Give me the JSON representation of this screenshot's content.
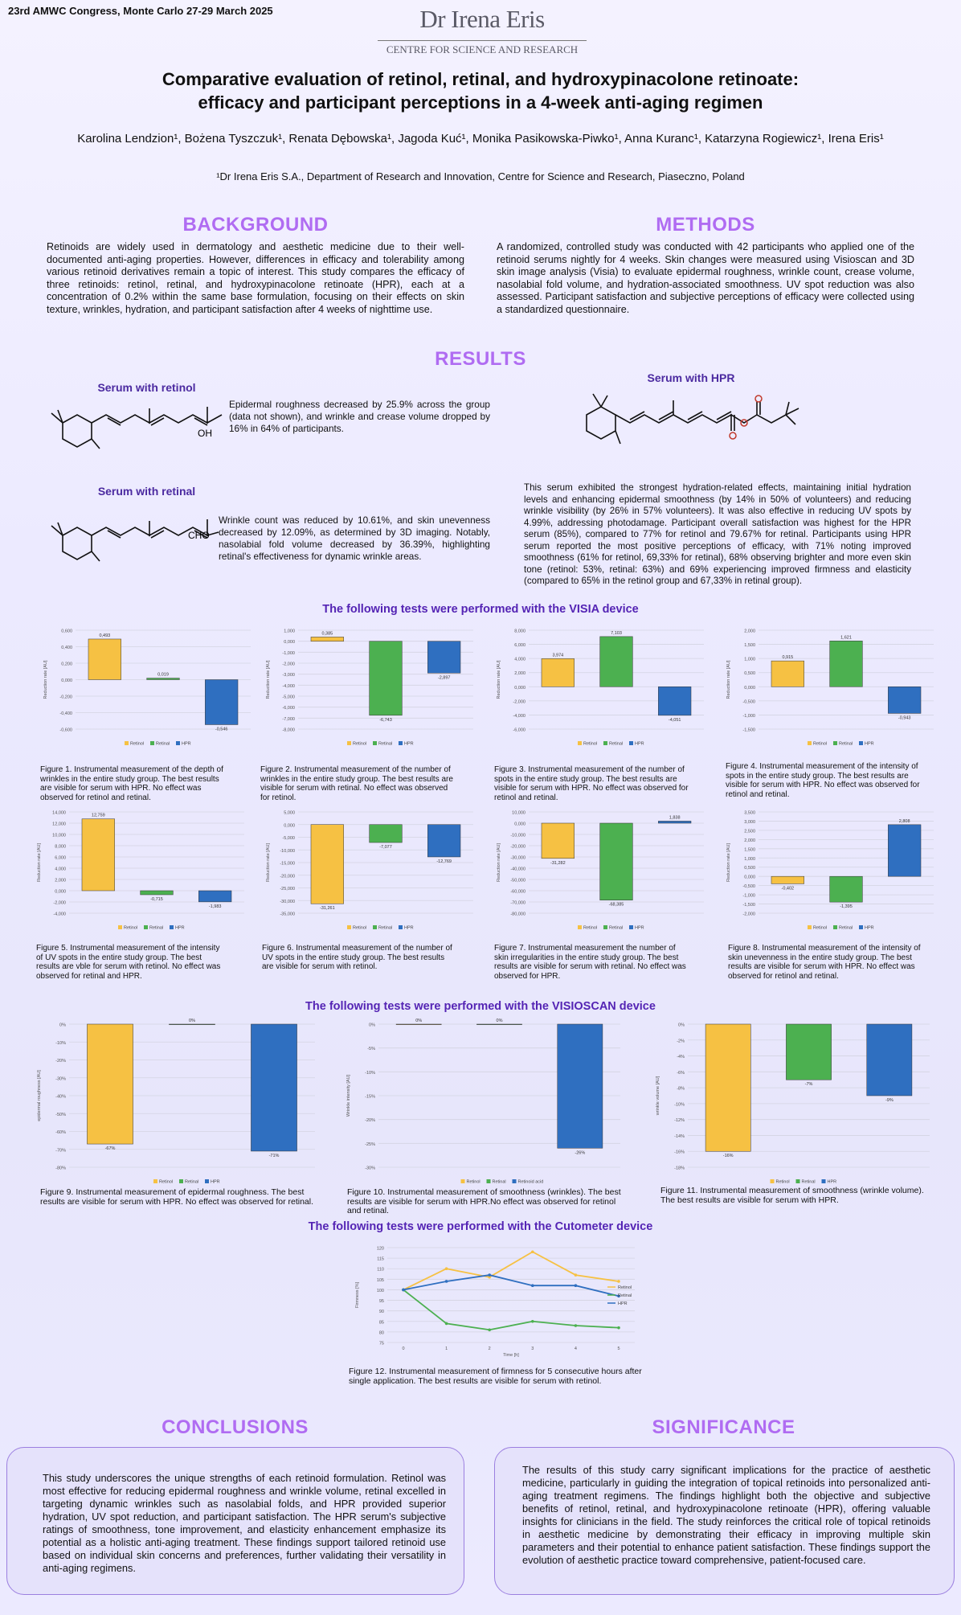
{
  "header": {
    "congress": "23rd AMWC Congress, Monte Carlo 27-29 March 2025",
    "logo_main": "Dr Irena Eris",
    "logo_sub": "CENTRE FOR SCIENCE AND RESEARCH",
    "title_line1": "Comparative evaluation of retinol, retinal, and hydroxypinacolone retinoate:",
    "title_line2": "efficacy and participant perceptions in a 4-week anti-aging regimen",
    "authors": "Karolina Lendzion¹, Bożena Tyszczuk¹, Renata Dębowska¹, Jagoda Kuć¹, Monika Pasikowska-Piwko¹, Anna Kuranc¹, Katarzyna Rogiewicz¹, Irena Eris¹",
    "affiliation": "¹Dr Irena Eris S.A., Department of Research and Innovation, Centre for Science and Research, Piaseczno, Poland"
  },
  "background": {
    "heading": "BACKGROUND",
    "text": "Retinoids are widely used in dermatology and aesthetic medicine due to their well-documented anti-aging properties. However, differences in efficacy and tolerability among various retinoid derivatives remain a topic of interest. This study compares the efficacy of three retinoids: retinol, retinal, and hydroxypinacolone retinoate (HPR), each at a concentration of 0.2% within the same base formulation, focusing on their effects on skin texture, wrinkles, hydration, and participant satisfaction after 4 weeks of nighttime use."
  },
  "methods": {
    "heading": "METHODS",
    "text": "A randomized, controlled study was conducted with 42 participants who applied one of the retinoid serums nightly for 4 weeks. Skin changes were measured using Visioscan and 3D skin image analysis (Visia) to evaluate epidermal roughness, wrinkle count, crease volume, nasolabial fold volume, and hydration-associated smoothness. UV spot reduction was also assessed. Participant satisfaction and subjective perceptions of efficacy were collected using a standardized questionnaire."
  },
  "results": {
    "heading": "RESULTS",
    "retinol_title": "Serum with retinol",
    "retinol_label": "OH",
    "retinol_text": "Epidermal roughness decreased by 25.9% across the group (data not shown), and wrinkle and crease volume dropped by 16% in 64% of participants.",
    "retinal_title": "Serum with retinal",
    "retinal_label": "CHO",
    "retinal_text": "Wrinkle count was reduced by 10.61%, and skin unevenness decreased by 12.09%, as determined by 3D imaging. Notably, nasolabial fold volume decreased by 36.39%, highlighting retinal's effectiveness for dynamic wrinkle areas.",
    "hpr_title": "Serum with HPR",
    "hpr_text": "This serum exhibited the strongest hydration-related effects, maintaining initial hydration levels and enhancing epidermal smoothness (by 14% in 50% of volunteers) and reducing wrinkle visibility (by 26% in 57% volunteers). It was also effective in reducing UV spots by 4.99%, addressing photodamage. Participant overall satisfaction was highest for the HPR serum (85%), compared to 77% for retinol and 79.67% for retinal. Participants using HPR serum reported the most positive perceptions of efficacy, with 71% noting improved smoothness (61% for retinol, 69,33% for retinal), 68% observing brighter and more even skin tone (retinol: 53%, retinal: 63%) and 69% experiencing improved firmness and elasticity (compared to 65% in the retinol group and 67,33% in retinal group).",
    "visia_heading": "The following tests were performed with the VISIA device",
    "visioscan_heading": "The following tests were performed with the VISIOSCAN device",
    "cutometer_heading": "The following tests were performed with the Cutometer device"
  },
  "captions": {
    "fig1": "Figure 1. Instrumental measurement of the depth of wrinkles in the entire study group. The best results are visible for serum with HPR. No effect was observed for retinol and retinal.",
    "fig2": "Figure 2. Instrumental measurement of the number of wrinkles in the entire study group. The best results are visible for serum with retinal. No effect was observed for retinol.",
    "fig3": "Figure 3. Instrumental measurement of the number of spots in the entire study group. The best results are visible for serum with HPR. No effect was observed for retinol and retinal.",
    "fig4": "Figure 4. Instrumental measurement of the intensity of spots in the entire study group. The best results are visible for serum with HPR. No effect was observed for retinol and retinal.",
    "fig5": "Figure 5. Instrumental measurement of the intensity of UV spots in the entire study group. The best results are vble for serum with retinol. No effect was observed for retinal and HPR.",
    "fig6": "Figure 6. Instrumental measurement of the number of UV spots in the entire study group. The best results are visible for serum with retinol.",
    "fig7": "Figure 7. Instrumental measurement the number of skin irregularities in the entire study group. The best results are visible for serum with retinal. No effect was observed for HPR.",
    "fig8": "Figure 8. Instrumental measurement of the intensity of skin unevenness in the entire study group. The best results are visible for serum with HPR. No effect was observed for retinol and retinal.",
    "fig9": "Figure 9. Instrumental measurement of epidermal roughness. The best results are visible for serum with HPR. No effect was observed for retinal.",
    "fig10": "Figure 10. Instrumental measurement of smoothness (wrinkles). The best results are visible for serum with HPR.No effect was observed for retinol and retinal.",
    "fig11": "Figure 11. Instrumental measurement of smoothness (wrinkle volume). The best results are visible for serum with HPR.",
    "fig12": "Figure 12. Instrumental measurement of firmness for 5 consecutive hours after single application. The best results are visible for serum with retinol."
  },
  "conclusions": {
    "heading": "CONCLUSIONS",
    "text": "This study underscores the unique strengths of each retinoid formulation. Retinol was most effective for reducing epidermal roughness and wrinkle volume, retinal excelled in targeting dynamic wrinkles such as nasolabial folds, and HPR provided superior hydration, UV spot reduction, and participant satisfaction. The HPR serum's subjective ratings of smoothness, tone improvement, and elasticity enhancement emphasize its potential as a holistic anti-aging treatment. These findings support tailored retinoid use based on individual skin concerns and preferences, further validating their versatility in anti-aging regimens."
  },
  "significance": {
    "heading": "SIGNIFICANCE",
    "text": "The results of this study carry significant implications for the practice of aesthetic medicine, particularly in guiding the integration of topical retinoids into personalized anti-aging treatment regimens. The findings highlight both the objective and subjective benefits of retinol, retinal, and hydroxypinacolone retinoate (HPR), offering valuable insights for clinicians in the field. The study reinforces the critical role of topical retinoids in aesthetic medicine by demonstrating their efficacy in improving multiple skin parameters and their potential to enhance patient satisfaction. These findings support the evolution of aesthetic practice toward comprehensive, patient-focused care."
  },
  "colors": {
    "retinol": "#f6c143",
    "retinal": "#4cb050",
    "hpr": "#2f6fc0",
    "heading_purple": "#b06cf2",
    "device_purple": "#5424b4"
  },
  "chart_data": [
    {
      "id": "fig1",
      "type": "bar",
      "ylabel": "Reduction rate [AU]",
      "categories": [
        "Retinol",
        "Retinal",
        "HPR"
      ],
      "values": [
        0.493,
        0.019,
        -0.546
      ],
      "labels": [
        "0,493",
        "0,019",
        "-0,546"
      ],
      "ylim": [
        -0.6,
        0.6
      ],
      "yticks": [
        -0.6,
        -0.4,
        -0.2,
        0,
        0.2,
        0.4,
        0.6
      ],
      "ticklabels": [
        "-0,600",
        "-0,400",
        "-0,200",
        "0,000",
        "0,200",
        "0,400",
        "0,600"
      ],
      "legend": [
        "Retinol",
        "Retinal",
        "HPR"
      ]
    },
    {
      "id": "fig2",
      "type": "bar",
      "ylabel": "Reduction rate [AU]",
      "categories": [
        "Retinol",
        "Retinal",
        "HPR"
      ],
      "values": [
        0.385,
        -6.743,
        -2.897
      ],
      "labels": [
        "0,385",
        "-6,743",
        "-2,897"
      ],
      "ylim": [
        -8,
        1
      ],
      "yticks": [
        -8,
        -7,
        -6,
        -5,
        -4,
        -3,
        -2,
        -1,
        0,
        1
      ],
      "ticklabels": [
        "-8,000",
        "-7,000",
        "-6,000",
        "-5,000",
        "-4,000",
        "-3,000",
        "-2,000",
        "-1,000",
        "0,000",
        "1,000"
      ],
      "legend": [
        "Retinol",
        "Retinal",
        "HPR"
      ]
    },
    {
      "id": "fig3",
      "type": "bar",
      "ylabel": "Reduction rate [AU]",
      "categories": [
        "Retinol",
        "Retinal",
        "HPR"
      ],
      "values": [
        3.974,
        7.103,
        -4.051
      ],
      "labels": [
        "3,974",
        "7,103",
        "-4,051"
      ],
      "ylim": [
        -6,
        8
      ],
      "yticks": [
        -6,
        -4,
        -2,
        0,
        2,
        4,
        6,
        8
      ],
      "ticklabels": [
        "-6,000",
        "-4,000",
        "-2,000",
        "0,000",
        "2,000",
        "4,000",
        "6,000",
        "8,000"
      ],
      "legend": [
        "Retinol",
        "Retinal",
        "HPR"
      ]
    },
    {
      "id": "fig4",
      "type": "bar",
      "ylabel": "Reduction rate [AU]",
      "categories": [
        "Retinol",
        "Retinal",
        "HPR"
      ],
      "values": [
        0.915,
        1.621,
        -0.943
      ],
      "labels": [
        "0,915",
        "1,621",
        "-0,943"
      ],
      "ylim": [
        -1.5,
        2
      ],
      "yticks": [
        -1.5,
        -1,
        -0.5,
        0,
        0.5,
        1,
        1.5,
        2
      ],
      "ticklabels": [
        "-1,500",
        "-1,000",
        "-0,500",
        "0,000",
        "0,500",
        "1,000",
        "1,500",
        "2,000"
      ],
      "legend": [
        "Retinol",
        "Retinal",
        "HPR"
      ]
    },
    {
      "id": "fig5",
      "type": "bar",
      "ylabel": "Reduction rate [AU]",
      "categories": [
        "Retinol",
        "Retinal",
        "HPR"
      ],
      "values": [
        12.759,
        -0.715,
        -1.983
      ],
      "labels": [
        "12,759",
        "-0,715",
        "-1,983"
      ],
      "ylim": [
        -4,
        14
      ],
      "yticks": [
        -4,
        -2,
        0,
        2,
        4,
        6,
        8,
        10,
        12,
        14
      ],
      "ticklabels": [
        "-4,000",
        "-2,000",
        "0,000",
        "2,000",
        "4,000",
        "6,000",
        "8,000",
        "10,000",
        "12,000",
        "14,000"
      ],
      "legend": [
        "Retinol",
        "Retinal",
        "HPR"
      ]
    },
    {
      "id": "fig6",
      "type": "bar",
      "ylabel": "Reduction rate [AU]",
      "categories": [
        "Retinol",
        "Retinal",
        "HPR"
      ],
      "values": [
        -31.261,
        -7.077,
        -12.769
      ],
      "labels": [
        "-31,261",
        "-7,077",
        "-12,769"
      ],
      "ylim": [
        -35,
        5
      ],
      "yticks": [
        -35,
        -30,
        -25,
        -20,
        -15,
        -10,
        -5,
        0,
        5
      ],
      "ticklabels": [
        "-35,000",
        "-30,000",
        "-25,000",
        "-20,000",
        "-15,000",
        "-10,000",
        "-5,000",
        "0,000",
        "5,000"
      ],
      "legend": [
        "Retinol",
        "Retinal",
        "HPR"
      ]
    },
    {
      "id": "fig7",
      "type": "bar",
      "ylabel": "Reduction rate [AU]",
      "categories": [
        "Retinol",
        "Retinal",
        "HPR"
      ],
      "values": [
        -31.282,
        -68.385,
        1.838
      ],
      "labels": [
        "-31,282",
        "-68,385",
        "1,838"
      ],
      "ylim": [
        -80,
        10
      ],
      "yticks": [
        -80,
        -70,
        -60,
        -50,
        -40,
        -30,
        -20,
        -10,
        0,
        10
      ],
      "ticklabels": [
        "-80,000",
        "-70,000",
        "-60,000",
        "-50,000",
        "-40,000",
        "-30,000",
        "-20,000",
        "-10,000",
        "0,000",
        "10,000"
      ],
      "legend": [
        "Retinol",
        "Retinal",
        "HPR"
      ]
    },
    {
      "id": "fig8",
      "type": "bar",
      "ylabel": "Reduction rate [AU]",
      "categories": [
        "Retinol",
        "Retinal",
        "HPR"
      ],
      "values": [
        -0.402,
        -1.395,
        2.808
      ],
      "labels": [
        "-0,402",
        "-1,395",
        "2,808"
      ],
      "ylim": [
        -2,
        3.5
      ],
      "yticks": [
        -2,
        -1.5,
        -1,
        -0.5,
        0,
        0.5,
        1,
        1.5,
        2,
        2.5,
        3,
        3.5
      ],
      "ticklabels": [
        "-2,000",
        "-1,500",
        "-1,000",
        "-0,500",
        "0,000",
        "0,500",
        "1,000",
        "1,500",
        "2,000",
        "2,500",
        "3,000",
        "3,500"
      ],
      "legend": [
        "Retinol",
        "Retinal",
        "HPR"
      ]
    },
    {
      "id": "fig9",
      "type": "bar",
      "ylabel": "epidermal roughness [AU]",
      "categories": [
        "Retinol",
        "Retinal",
        "HPR"
      ],
      "values": [
        -67,
        0,
        -71
      ],
      "labels": [
        "-67%",
        "0%",
        "-71%"
      ],
      "ylim": [
        -80,
        0
      ],
      "yticks": [
        -80,
        -70,
        -60,
        -50,
        -40,
        -30,
        -20,
        -10,
        0
      ],
      "ticklabels": [
        "-80%",
        "-70%",
        "-60%",
        "-50%",
        "-40%",
        "-30%",
        "-20%",
        "-10%",
        "0%"
      ],
      "legend": [
        "Retinol",
        "Retinal",
        "HPR"
      ]
    },
    {
      "id": "fig10",
      "type": "bar",
      "ylabel": "Wrinkle intensity [AU]",
      "categories": [
        "Retinol",
        "Retinal",
        "Retinoid acid"
      ],
      "values": [
        0,
        0,
        -26
      ],
      "labels": [
        "0%",
        "0%",
        "-26%"
      ],
      "ylim": [
        -30,
        0
      ],
      "yticks": [
        -30,
        -25,
        -20,
        -15,
        -10,
        -5,
        0
      ],
      "ticklabels": [
        "-30%",
        "-25%",
        "-20%",
        "-15%",
        "-10%",
        "-5%",
        "0%"
      ],
      "legend": [
        "Retinol",
        "Retinal",
        "Retinoid acid"
      ]
    },
    {
      "id": "fig11",
      "type": "bar",
      "ylabel": "wrinkle volume [AU]",
      "categories": [
        "Retinol",
        "Retinal",
        "HPR"
      ],
      "values": [
        -16,
        -7,
        -9
      ],
      "labels": [
        "-16%",
        "-7%",
        "-9%"
      ],
      "ylim": [
        -18,
        0
      ],
      "yticks": [
        -18,
        -16,
        -14,
        -12,
        -10,
        -8,
        -6,
        -4,
        -2,
        0
      ],
      "ticklabels": [
        "-18%",
        "-16%",
        "-14%",
        "-12%",
        "-10%",
        "-8%",
        "-6%",
        "-4%",
        "-2%",
        "0%"
      ],
      "legend": [
        "Retinol",
        "Retinal",
        "HPR"
      ]
    },
    {
      "id": "fig12",
      "type": "line",
      "xlabel": "Time [h]",
      "ylabel": "Firmness [%]",
      "x": [
        0,
        1,
        2,
        3,
        4,
        5
      ],
      "series": [
        {
          "name": "Retinol",
          "values": [
            100,
            110,
            106,
            118,
            107,
            104
          ]
        },
        {
          "name": "Retinal",
          "values": [
            100,
            84,
            81,
            85,
            83,
            82
          ]
        },
        {
          "name": "HPR",
          "values": [
            100,
            104,
            107,
            102,
            102,
            97
          ]
        }
      ],
      "ylim": [
        75,
        120
      ],
      "yticks": [
        75,
        80,
        85,
        90,
        95,
        100,
        105,
        110,
        115,
        120
      ],
      "ticklabels": [
        "75",
        "80",
        "85",
        "90",
        "95",
        "100",
        "105",
        "110",
        "115",
        "120"
      ],
      "legend": [
        "Retinol",
        "Retinal",
        "HPR"
      ]
    }
  ]
}
